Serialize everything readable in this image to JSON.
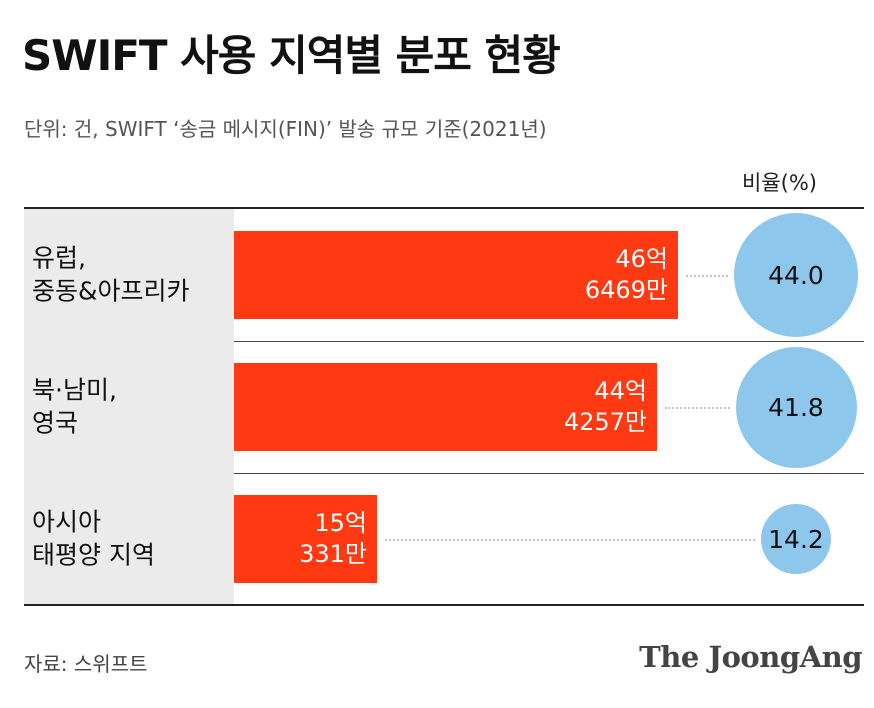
{
  "title": "SWIFT 사용 지역별 분포 현황",
  "subtitle": "단위: 건, SWIFT ‘송금 메시지(FIN)’ 발송 규모 기준(2021년)",
  "ratio_header": "비율(%)",
  "source": "자료: 스위프트",
  "logo": "The JoongAng",
  "colors": {
    "bar": "#ff3a12",
    "bubble": "#8ec7ec",
    "category_bg": "#ebebeb"
  },
  "chart_data": {
    "type": "bar",
    "orientation": "horizontal",
    "title": "SWIFT 사용 지역별 분포 현황",
    "unit": "건",
    "categories": [
      "유럽,\n중동&아프리카",
      "북·남미,\n영국",
      "아시아\n태평양 지역"
    ],
    "values": [
      4664690000,
      4442570000,
      1503310000
    ],
    "value_labels": [
      "46억\n6469만",
      "44억\n4257만",
      "15억\n331만"
    ],
    "ratio_label": "비율(%)",
    "ratios": [
      44.0,
      41.8,
      14.2
    ],
    "ratio_labels": [
      "44.0",
      "41.8",
      "14.2"
    ],
    "grid": false,
    "legend": "none"
  }
}
